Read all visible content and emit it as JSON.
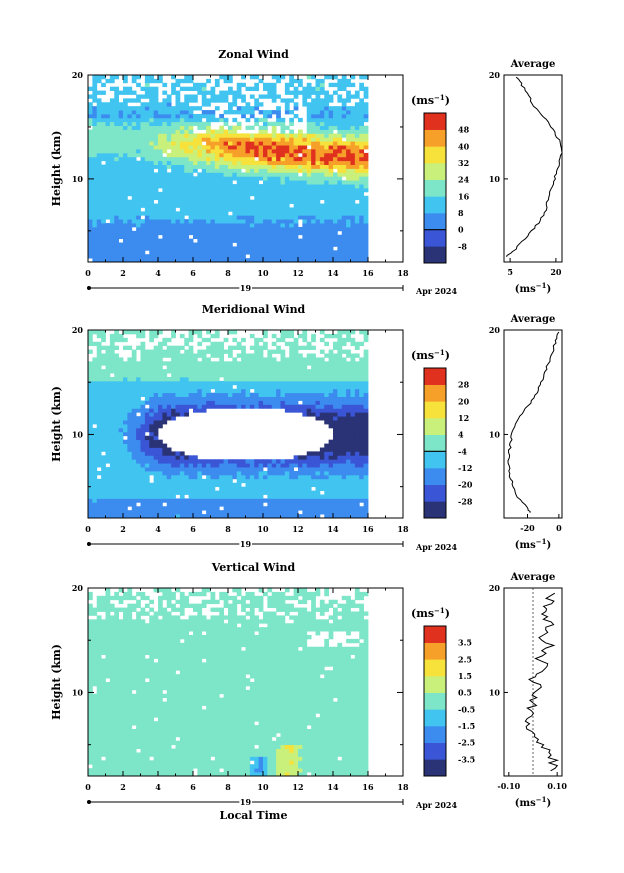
{
  "chart_data": [
    {
      "type": "heatmap",
      "title": "Zonal Wind",
      "ylabel": "Height (km)",
      "xlim": [
        0,
        18
      ],
      "ylim": [
        2,
        20
      ],
      "xticks": [
        0,
        2,
        4,
        6,
        8,
        10,
        12,
        14,
        16,
        18
      ],
      "yticks": [
        10,
        20
      ],
      "date_marker": "19",
      "date_label": "Apr 2024",
      "colorbar": {
        "unit": "(ms⁻¹)",
        "levels": [
          -8,
          0,
          8,
          16,
          24,
          32,
          40,
          48
        ],
        "ticks": [
          "48",
          "40",
          "32",
          "24",
          "16",
          "8",
          "0",
          "-8"
        ],
        "colors": [
          "#2b3377",
          "#3a55d6",
          "#3c8cf0",
          "#41c5f0",
          "#7ee6c8",
          "#c8f07a",
          "#f6e23a",
          "#f6a02a",
          "#e0301e"
        ]
      },
      "data_extent": [
        0,
        16
      ],
      "field_description": "jet of 32-46 m/s near 12-13 km after 8 LT; 0-16 m/s below 8 km",
      "profile": {
        "title": "Average",
        "xlabel": "(ms⁻¹)",
        "xticks": [
          "5",
          "20"
        ],
        "xlim": [
          3,
          22
        ],
        "yticks": [
          "10",
          "20"
        ],
        "heights": [
          2.5,
          3,
          4,
          5,
          6,
          7,
          8,
          9,
          10,
          11,
          12,
          13,
          14,
          15,
          16,
          17,
          18,
          19,
          19.8
        ],
        "values": [
          3.5,
          6,
          9,
          12,
          15,
          16.5,
          17.5,
          18.5,
          19.5,
          20.5,
          21.5,
          22,
          20.5,
          18.5,
          16,
          13,
          11,
          9,
          7
        ]
      }
    },
    {
      "type": "heatmap",
      "title": "Meridional Wind",
      "ylabel": "Height (km)",
      "xlim": [
        0,
        18
      ],
      "ylim": [
        2,
        20
      ],
      "xticks": [
        0,
        2,
        4,
        6,
        8,
        10,
        12,
        14,
        16,
        18
      ],
      "yticks": [
        10,
        20
      ],
      "date_marker": "19",
      "date_label": "Apr 2024",
      "colorbar": {
        "unit": "(ms⁻¹)",
        "levels": [
          -28,
          -20,
          -12,
          -4,
          4,
          12,
          20,
          28
        ],
        "ticks": [
          "28",
          "20",
          "12",
          "4",
          "-4",
          "-12",
          "-20",
          "-28"
        ],
        "colors": [
          "#2b3377",
          "#3a55d6",
          "#3c8cf0",
          "#41c5f0",
          "#7ee6c8",
          "#c8f07a",
          "#f6e23a",
          "#f6a02a",
          "#e0301e"
        ]
      },
      "data_extent": [
        0,
        16
      ],
      "field_description": "strong northerly (below -28 m/s) core at 7-13 km after 3 LT; weak winds above 15 km",
      "profile": {
        "title": "Average",
        "xlabel": "(ms⁻¹)",
        "xticks": [
          "-20",
          "0"
        ],
        "xlim": [
          -35,
          2
        ],
        "yticks": [
          "10",
          "20"
        ],
        "heights": [
          2.5,
          3,
          4,
          5,
          6,
          7,
          8,
          9,
          10,
          11,
          12,
          13,
          14,
          15,
          16,
          17,
          18,
          19,
          19.8
        ],
        "values": [
          -18,
          -20,
          -26,
          -29,
          -31,
          -32,
          -32,
          -31,
          -30,
          -28,
          -24,
          -18,
          -14,
          -11,
          -9,
          -6,
          -4,
          -2,
          0
        ]
      }
    },
    {
      "type": "heatmap",
      "title": "Vertical Wind",
      "ylabel": "Height (km)",
      "xlabel": "Local Time",
      "xlim": [
        0,
        18
      ],
      "ylim": [
        2,
        20
      ],
      "xticks": [
        0,
        2,
        4,
        6,
        8,
        10,
        12,
        14,
        16,
        18
      ],
      "yticks": [
        10,
        20
      ],
      "date_marker": "19",
      "date_label": "Apr 2024",
      "colorbar": {
        "unit": "(ms⁻¹)",
        "levels": [
          -3.5,
          -2.5,
          -1.5,
          -0.5,
          0.5,
          1.5,
          2.5,
          3.5
        ],
        "ticks": [
          "3.5",
          "2.5",
          "1.5",
          "0.5",
          "-0.5",
          "-1.5",
          "-2.5",
          "-3.5"
        ],
        "colors": [
          "#2b3377",
          "#3a55d6",
          "#3c8cf0",
          "#41c5f0",
          "#7ee6c8",
          "#c8f07a",
          "#f6e23a",
          "#f6a02a",
          "#e0301e"
        ]
      },
      "data_extent": [
        0,
        16
      ],
      "field_description": "mostly -0.5 to 0.5 m/s, streaks of -1 to 1 m/s",
      "profile": {
        "title": "Average",
        "xlabel": "(ms⁻¹)",
        "xticks": [
          "-0.10",
          "0.10"
        ],
        "xlim": [
          -0.12,
          0.12
        ],
        "yticks": [
          "10",
          "20"
        ],
        "heights": [
          2.5,
          3.5,
          4.5,
          5.5,
          6.5,
          7.5,
          8.5,
          9.5,
          10.5,
          11.5,
          12.5,
          13.5,
          14.5,
          15.5,
          16.5,
          17.5,
          18.5,
          19.5
        ],
        "values": [
          0.07,
          0.09,
          0.05,
          0.02,
          -0.01,
          -0.02,
          -0.01,
          0.0,
          0.04,
          -0.01,
          0.05,
          0.02,
          0.07,
          0.03,
          0.08,
          0.04,
          0.06,
          0.09
        ]
      }
    }
  ]
}
